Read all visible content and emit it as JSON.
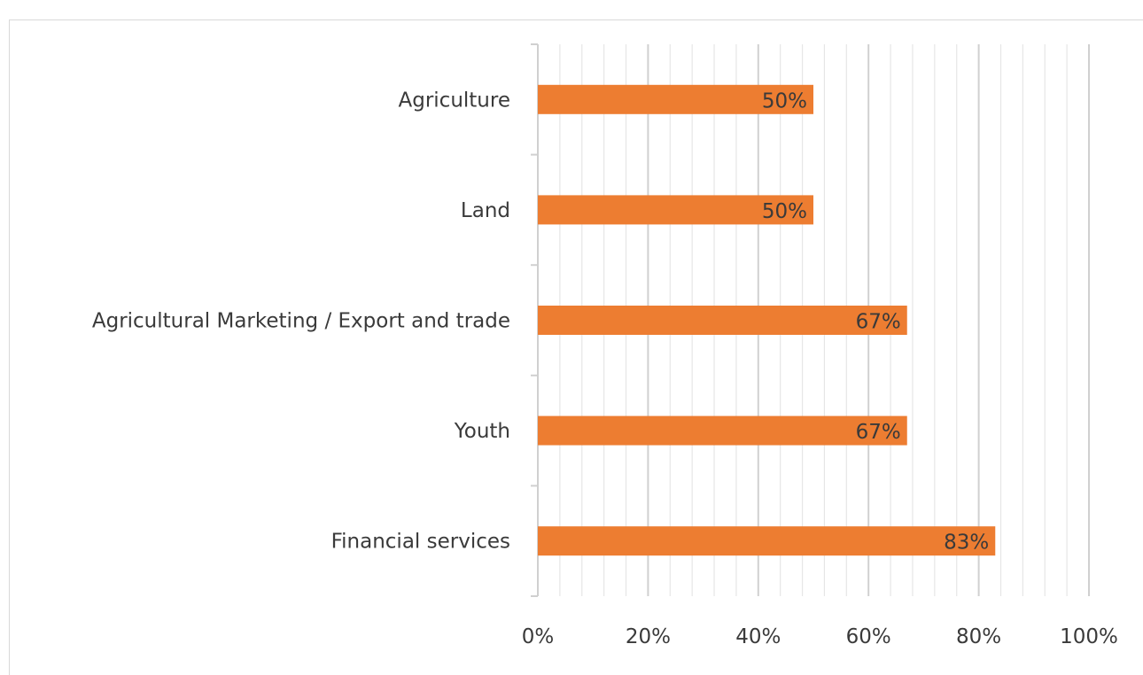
{
  "colors": {
    "bar": "#ED7D31",
    "major_grid": "#d0d0d0",
    "minor_grid": "#e6e6e6",
    "axis": "#d0d0d0",
    "text": "#3a3a3a"
  },
  "chart_data": {
    "type": "bar",
    "orientation": "horizontal",
    "title": "",
    "xlabel": "",
    "ylabel": "",
    "categories": [
      "Agriculture",
      "Land",
      "Agricultural Marketing / Export and trade",
      "Youth",
      "Financial services"
    ],
    "values": [
      50,
      50,
      67,
      67,
      83
    ],
    "data_labels": [
      "50%",
      "50%",
      "67%",
      "67%",
      "83%"
    ],
    "xlim": [
      0,
      100
    ],
    "x_ticks": [
      0,
      20,
      40,
      60,
      80,
      100
    ],
    "x_tick_labels": [
      "0%",
      "20%",
      "40%",
      "60%",
      "80%",
      "100%"
    ],
    "minor_step": 4,
    "grid": true,
    "legend": "none"
  }
}
